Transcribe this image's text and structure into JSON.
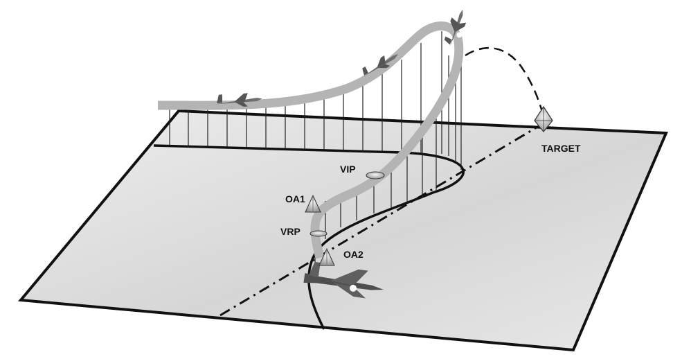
{
  "diagram": {
    "labels": {
      "target": "TARGET",
      "vip": "VIP",
      "oa1": "OA1",
      "vrp": "VRP",
      "oa2": "OA2"
    },
    "colors": {
      "ground": "#dedede",
      "ground_edge": "#111111",
      "flight_path": "#b4b4b4",
      "drop_lines": "#222222",
      "aircraft": "#6e6e6e"
    }
  }
}
